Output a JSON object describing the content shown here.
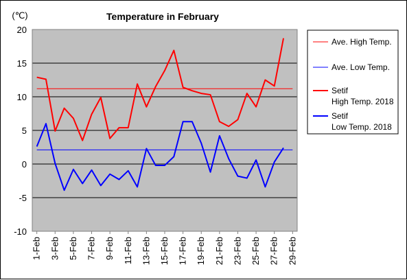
{
  "chart_data": {
    "type": "line",
    "title": "Temperature in February",
    "unit_label": "(℃)",
    "ylim": [
      -10,
      20
    ],
    "y_ticks": [
      20,
      15,
      10,
      5,
      0,
      -5,
      -10
    ],
    "x_ticks": [
      "1-Feb",
      "3-Feb",
      "5-Feb",
      "7-Feb",
      "9-Feb",
      "11-Feb",
      "13-Feb",
      "15-Feb",
      "17-Feb",
      "19-Feb",
      "21-Feb",
      "23-Feb",
      "25-Feb",
      "27-Feb",
      "29-Feb"
    ],
    "grid": "horizontal",
    "legend_position": "right",
    "days": [
      1,
      2,
      3,
      4,
      5,
      6,
      7,
      8,
      9,
      10,
      11,
      12,
      13,
      14,
      15,
      16,
      17,
      18,
      19,
      20,
      21,
      22,
      23,
      24,
      25,
      26,
      27,
      28
    ],
    "series": [
      {
        "name": "Ave. High Temp.",
        "color": "#ff0000",
        "style": "thin",
        "values": [
          11.2
        ]
      },
      {
        "name": "Ave. Low Temp.",
        "color": "#0000ff",
        "style": "thin",
        "values": [
          2.1
        ]
      },
      {
        "name": "Setif High Temp. 2018",
        "legend_lines": [
          "Setif",
          "High Temp. 2018"
        ],
        "color": "#ff0000",
        "style": "thick",
        "values": [
          12.9,
          12.6,
          4.9,
          8.3,
          6.8,
          3.5,
          7.4,
          9.9,
          3.8,
          5.4,
          5.4,
          11.9,
          8.5,
          11.5,
          13.9,
          16.9,
          11.4,
          10.9,
          10.5,
          10.3,
          6.3,
          5.6,
          6.6,
          10.5,
          8.5,
          12.5,
          11.6,
          18.7
        ]
      },
      {
        "name": "Setif Low Temp. 2018",
        "legend_lines": [
          "Setif",
          "Low Temp. 2018"
        ],
        "color": "#0000ff",
        "style": "thick",
        "values": [
          2.6,
          6.0,
          0.1,
          -3.9,
          -0.8,
          -2.9,
          -0.9,
          -3.2,
          -1.5,
          -2.3,
          -1.0,
          -3.4,
          2.3,
          -0.2,
          -0.2,
          1.1,
          6.3,
          6.3,
          3.1,
          -1.2,
          4.2,
          0.8,
          -1.8,
          -2.1,
          0.6,
          -3.4,
          0.3,
          2.4
        ]
      }
    ]
  }
}
